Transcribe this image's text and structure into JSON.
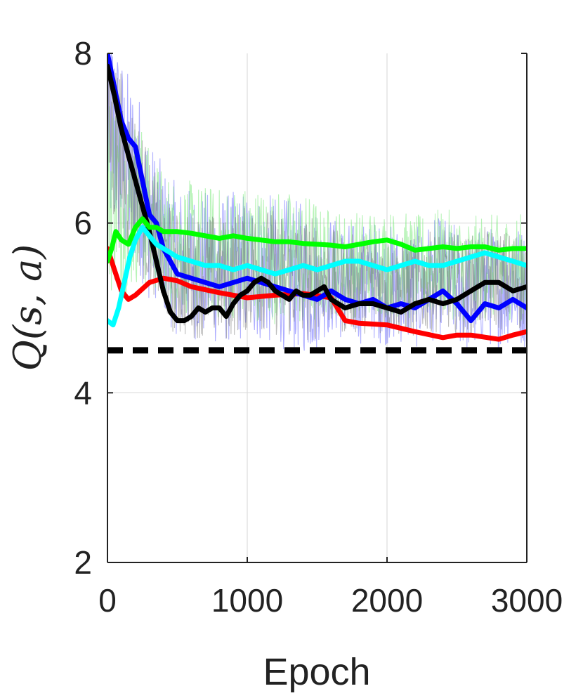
{
  "chart_data": {
    "type": "line",
    "title": "",
    "xlabel": "Epoch",
    "ylabel": "Q(s, a)",
    "xlim": [
      0,
      3000
    ],
    "ylim": [
      2,
      8
    ],
    "xticks": [
      0,
      1000,
      2000,
      3000
    ],
    "xtick_labels": [
      "0",
      "1000",
      "2000",
      "3000"
    ],
    "yticks": [
      2,
      4,
      6,
      8
    ],
    "ytick_labels": [
      "2",
      "4",
      "6",
      "8"
    ],
    "grid": true,
    "legend": "none",
    "colors": {
      "red": "#ff0000",
      "blue": "#0000ff",
      "black": "#000000",
      "cyan": "#00ffff",
      "green": "#00ff00",
      "noise_blue": "#6d6dff",
      "noise_green": "#7dea7d",
      "noise_gray": "#6c6c6c"
    },
    "reference_line": {
      "y": 4.5,
      "style": "dashed",
      "color": "#000000"
    },
    "series": [
      {
        "color": "red",
        "x": [
          0,
          50,
          100,
          150,
          200,
          300,
          400,
          500,
          600,
          800,
          1000,
          1200,
          1400,
          1600,
          1700,
          1800,
          2000,
          2200,
          2400,
          2500,
          2600,
          2800,
          2900,
          3000
        ],
        "y": [
          5.7,
          5.45,
          5.2,
          5.1,
          5.15,
          5.3,
          5.35,
          5.32,
          5.25,
          5.18,
          5.12,
          5.15,
          5.17,
          5.12,
          4.85,
          4.82,
          4.8,
          4.72,
          4.65,
          4.68,
          4.68,
          4.63,
          4.68,
          4.72
        ]
      },
      {
        "color": "blue",
        "x": [
          0,
          50,
          100,
          150,
          200,
          250,
          300,
          350,
          400,
          500,
          600,
          700,
          800,
          900,
          1000,
          1100,
          1200,
          1300,
          1400,
          1500,
          1600,
          1700,
          1800,
          1900,
          2000,
          2100,
          2200,
          2300,
          2400,
          2500,
          2600,
          2700,
          2800,
          2900,
          3000
        ],
        "y": [
          8.0,
          7.6,
          7.2,
          7.0,
          6.9,
          6.5,
          6.1,
          6.0,
          5.7,
          5.4,
          5.35,
          5.3,
          5.25,
          5.3,
          5.35,
          5.3,
          5.25,
          5.2,
          5.15,
          5.1,
          5.2,
          5.1,
          5.05,
          5.1,
          5.0,
          5.05,
          5.0,
          5.1,
          5.2,
          5.05,
          4.85,
          5.05,
          5.0,
          5.1,
          5.0
        ]
      },
      {
        "color": "black",
        "x": [
          0,
          50,
          100,
          150,
          200,
          250,
          300,
          350,
          400,
          450,
          500,
          550,
          600,
          650,
          700,
          750,
          800,
          850,
          900,
          950,
          1000,
          1050,
          1100,
          1150,
          1200,
          1250,
          1300,
          1350,
          1400,
          1450,
          1500,
          1550,
          1600,
          1650,
          1700,
          1800,
          1900,
          2000,
          2100,
          2200,
          2300,
          2400,
          2500,
          2600,
          2700,
          2800,
          2900,
          3000
        ],
        "y": [
          7.85,
          7.5,
          7.1,
          6.8,
          6.5,
          6.2,
          5.9,
          5.55,
          5.2,
          4.95,
          4.85,
          4.85,
          4.9,
          5.0,
          4.95,
          5.0,
          5.0,
          4.9,
          5.05,
          5.15,
          5.2,
          5.3,
          5.35,
          5.3,
          5.2,
          5.15,
          5.1,
          5.2,
          5.15,
          5.15,
          5.2,
          5.25,
          5.1,
          5.05,
          5.0,
          5.05,
          5.05,
          5.0,
          4.95,
          5.05,
          5.1,
          5.05,
          5.1,
          5.2,
          5.3,
          5.3,
          5.2,
          5.25
        ]
      },
      {
        "color": "cyan",
        "x": [
          0,
          40,
          80,
          120,
          160,
          200,
          250,
          300,
          350,
          400,
          500,
          600,
          700,
          800,
          900,
          1000,
          1100,
          1200,
          1300,
          1400,
          1500,
          1600,
          1700,
          1800,
          1900,
          2000,
          2100,
          2200,
          2300,
          2400,
          2500,
          2600,
          2700,
          2800,
          2900,
          3000
        ],
        "y": [
          4.85,
          4.8,
          5.0,
          5.3,
          5.6,
          5.8,
          5.95,
          5.85,
          5.75,
          5.7,
          5.6,
          5.55,
          5.5,
          5.5,
          5.45,
          5.5,
          5.45,
          5.4,
          5.45,
          5.5,
          5.45,
          5.5,
          5.55,
          5.55,
          5.5,
          5.45,
          5.5,
          5.55,
          5.5,
          5.5,
          5.55,
          5.6,
          5.65,
          5.6,
          5.55,
          5.5
        ]
      },
      {
        "color": "green",
        "x": [
          0,
          30,
          60,
          100,
          150,
          200,
          250,
          300,
          350,
          400,
          500,
          600,
          700,
          800,
          900,
          1000,
          1100,
          1200,
          1300,
          1400,
          1500,
          1600,
          1700,
          1800,
          1900,
          2000,
          2100,
          2200,
          2300,
          2400,
          2500,
          2600,
          2700,
          2800,
          2900,
          3000
        ],
        "y": [
          5.55,
          5.7,
          5.9,
          5.8,
          5.75,
          5.95,
          6.05,
          5.95,
          5.95,
          5.9,
          5.9,
          5.88,
          5.85,
          5.82,
          5.85,
          5.82,
          5.8,
          5.78,
          5.78,
          5.76,
          5.75,
          5.74,
          5.72,
          5.75,
          5.78,
          5.8,
          5.75,
          5.68,
          5.7,
          5.72,
          5.7,
          5.72,
          5.72,
          5.68,
          5.7,
          5.7
        ]
      }
    ]
  }
}
